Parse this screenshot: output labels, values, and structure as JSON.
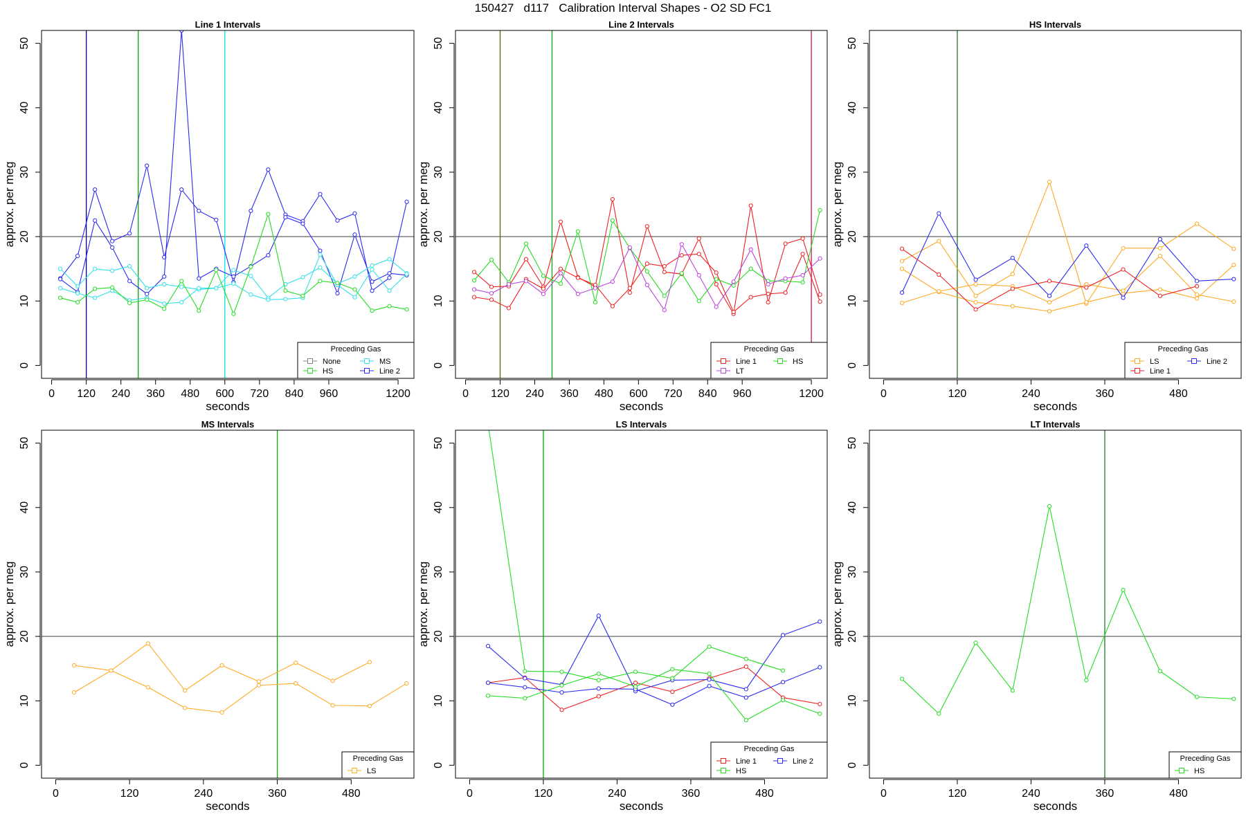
{
  "page": {
    "title": "150427   d117   Calibration Interval Shapes - O2 SD FC1"
  },
  "colors": {
    "None": "#808080",
    "HS": "#22dd22",
    "MS": "#33e0e8",
    "Line 2": "#2a2af0",
    "Line 1": "#ee2020",
    "LT": "#bb44dd",
    "LS": "#ffaa22",
    "green_vline": "#00aa00",
    "dark_green_vline": "#1c7a1c",
    "olive_vline": "#556b00",
    "navy_vline": "#00008b",
    "cyan_vline": "#00e5e5",
    "crimson_vline": "#cc1155",
    "ref_line": "#555555"
  },
  "chart_data": [
    {
      "type": "line",
      "title": "Line 1 Intervals",
      "xlabel": "seconds",
      "ylabel": "approx. per meg",
      "xlim": [
        -35,
        1255
      ],
      "ylim": [
        -2,
        52
      ],
      "xticks": [
        0,
        120,
        240,
        360,
        480,
        600,
        720,
        840,
        960,
        1200
      ],
      "yticks": [
        0,
        10,
        20,
        30,
        40,
        50
      ],
      "hline": 20,
      "vlines": [
        {
          "x": 120,
          "color": "navy_vline"
        },
        {
          "x": 300,
          "color": "green_vline"
        },
        {
          "x": 600,
          "color": "cyan_vline"
        }
      ],
      "legend": {
        "title": "Preceding Gas",
        "entries": [
          "None",
          "MS",
          "HS",
          "Line 2"
        ],
        "cols": 2
      },
      "series": [
        {
          "name": "Line 2",
          "x": [
            30,
            90,
            150,
            210,
            270,
            330,
            390,
            450,
            510,
            570,
            630,
            690,
            750,
            810,
            870,
            930,
            990,
            1050,
            1110,
            1170,
            1230
          ],
          "y": [
            13.5,
            17,
            27.3,
            19.3,
            20.5,
            31,
            16.8,
            27.3,
            24,
            22.6,
            12.9,
            24,
            30.4,
            23.4,
            22.4,
            26.6,
            22.5,
            23.6,
            11.6,
            13.6,
            25.4
          ]
        },
        {
          "name": "Line 2",
          "x": [
            30,
            90,
            150,
            210,
            270,
            330,
            390,
            450,
            510,
            570,
            630,
            690,
            750,
            810,
            870,
            930,
            990,
            1050,
            1110,
            1170,
            1230
          ],
          "y": [
            13.4,
            11.4,
            22.5,
            18.3,
            13.1,
            11.1,
            13.8,
            52,
            13.5,
            15,
            13.8,
            15.4,
            17.1,
            23,
            22,
            17.8,
            11.2,
            20.3,
            13,
            14.3,
            14
          ]
        },
        {
          "name": "MS",
          "x": [
            30,
            90,
            150,
            210,
            270,
            330,
            390,
            450,
            510,
            570,
            630,
            690,
            750,
            810,
            870,
            930,
            990,
            1050,
            1110,
            1170,
            1230
          ],
          "y": [
            15,
            12.3,
            15,
            14.7,
            15.4,
            12,
            12.6,
            12.2,
            11.8,
            12,
            14.8,
            13.9,
            10.5,
            12.6,
            13.7,
            15.2,
            12.7,
            13.8,
            15.5,
            16.5,
            14.3
          ]
        },
        {
          "name": "MS",
          "x": [
            30,
            90,
            150,
            210,
            270,
            330,
            390,
            450,
            510,
            570,
            630,
            690,
            750,
            810,
            870,
            930,
            990,
            1050,
            1110,
            1170,
            1230
          ],
          "y": [
            12,
            11.2,
            10.5,
            11.6,
            10.1,
            10.5,
            9.6,
            9.8,
            12,
            12,
            12.7,
            11,
            10.2,
            10.3,
            10.5,
            17.2,
            12.5,
            10.6,
            14.9,
            11.6,
            14.2
          ]
        },
        {
          "name": "HS",
          "x": [
            30,
            90,
            150,
            210,
            270,
            330,
            390,
            450,
            510,
            570,
            630,
            690,
            750,
            810,
            870,
            930,
            990,
            1050,
            1110,
            1170,
            1230
          ],
          "y": [
            10.5,
            9.8,
            11.9,
            12.1,
            9.7,
            10.2,
            8.8,
            13.1,
            8.5,
            14.8,
            8,
            15.3,
            23.5,
            11.6,
            10.8,
            13.1,
            12.8,
            11.8,
            8.5,
            9.2,
            8.7
          ]
        }
      ]
    },
    {
      "type": "line",
      "title": "Line 2 Intervals",
      "xlabel": "seconds",
      "ylabel": "approx. per meg",
      "xlim": [
        -35,
        1255
      ],
      "ylim": [
        -2,
        52
      ],
      "xticks": [
        0,
        120,
        240,
        360,
        480,
        600,
        720,
        840,
        960,
        1200
      ],
      "yticks": [
        0,
        10,
        20,
        30,
        40,
        50
      ],
      "hline": 20,
      "vlines": [
        {
          "x": 120,
          "color": "olive_vline"
        },
        {
          "x": 300,
          "color": "green_vline"
        },
        {
          "x": 1200,
          "color": "crimson_vline"
        }
      ],
      "legend": {
        "title": "Preceding Gas",
        "entries": [
          "Line 1",
          "HS",
          "LT"
        ],
        "cols": 2
      },
      "series": [
        {
          "name": "Line 1",
          "x": [
            30,
            90,
            150,
            210,
            270,
            330,
            390,
            450,
            510,
            570,
            630,
            690,
            750,
            810,
            870,
            930,
            990,
            1050,
            1110,
            1170,
            1230
          ],
          "y": [
            14.5,
            12.2,
            12.3,
            16.5,
            12.2,
            22.3,
            13.7,
            12.2,
            25.8,
            11.3,
            21.6,
            14.5,
            14.2,
            19.7,
            12.6,
            8,
            24.8,
            9.8,
            18.9,
            19.7,
            11
          ]
        },
        {
          "name": "Line 1",
          "x": [
            30,
            90,
            150,
            210,
            270,
            330,
            390,
            450,
            510,
            570,
            630,
            690,
            750,
            810,
            870,
            930,
            990,
            1050,
            1110,
            1170,
            1230
          ],
          "y": [
            10.6,
            10.2,
            8.9,
            13.4,
            11.9,
            15,
            13.6,
            12.5,
            9.2,
            12,
            15.8,
            15.4,
            17.1,
            17.3,
            14.4,
            8.3,
            10.6,
            11.1,
            11.3,
            17.3,
            9.9
          ]
        },
        {
          "name": "HS",
          "x": [
            30,
            90,
            150,
            210,
            270,
            330,
            390,
            450,
            510,
            570,
            630,
            690,
            750,
            810,
            870,
            930,
            990,
            1050,
            1110,
            1170,
            1230
          ],
          "y": [
            13.2,
            16.4,
            12.9,
            18.9,
            13.9,
            12.7,
            20.8,
            9.8,
            22.5,
            18.2,
            14.6,
            10.8,
            14.3,
            10,
            13.4,
            12.4,
            15,
            13.1,
            13.1,
            12.9,
            24.1
          ]
        },
        {
          "name": "LT",
          "x": [
            30,
            90,
            150,
            210,
            270,
            330,
            390,
            450,
            510,
            570,
            630,
            690,
            750,
            810,
            870,
            930,
            990,
            1050,
            1110,
            1170,
            1230
          ],
          "y": [
            11.8,
            11.2,
            12.6,
            13.1,
            11.1,
            14.3,
            11.1,
            12,
            13,
            18.3,
            12.5,
            8.6,
            18.8,
            14,
            9.1,
            13,
            18,
            12.6,
            13.5,
            14,
            16.6
          ]
        }
      ]
    },
    {
      "type": "line",
      "title": "HS Intervals",
      "xlabel": "seconds",
      "ylabel": "approx. per meg",
      "xlim": [
        -23,
        582
      ],
      "ylim": [
        -2,
        52
      ],
      "xticks": [
        0,
        120,
        240,
        360,
        480
      ],
      "yticks": [
        0,
        10,
        20,
        30,
        40,
        50
      ],
      "hline": 20,
      "vlines": [
        {
          "x": 120,
          "color": "dark_green_vline"
        }
      ],
      "legend": {
        "title": "Preceding Gas",
        "entries": [
          "LS",
          "Line 2",
          "Line 1"
        ],
        "cols": 2
      },
      "series": [
        {
          "name": "LS",
          "x": [
            30,
            90,
            150,
            210,
            270,
            330,
            390,
            450,
            510,
            570
          ],
          "y": [
            16.2,
            19.3,
            10.8,
            14.2,
            28.5,
            9.6,
            18.2,
            18.2,
            22,
            18.1
          ]
        },
        {
          "name": "LS",
          "x": [
            30,
            90,
            150,
            210,
            270,
            330,
            390,
            450,
            510,
            570
          ],
          "y": [
            15,
            11.4,
            9.8,
            9.2,
            8.4,
            9.8,
            11.2,
            11.8,
            10.4,
            15.6
          ]
        },
        {
          "name": "LS",
          "x": [
            30,
            90,
            150,
            210,
            270,
            330,
            390,
            450,
            510,
            570
          ],
          "y": [
            9.7,
            11.5,
            12.6,
            12.3,
            9.8,
            12.6,
            11.6,
            17,
            11,
            9.9
          ]
        },
        {
          "name": "Line 2",
          "x": [
            30,
            90,
            150,
            210,
            270,
            330,
            390,
            450,
            510,
            570
          ],
          "y": [
            11.3,
            23.6,
            13.3,
            16.7,
            10.8,
            18.6,
            10.5,
            19.6,
            13.1,
            13.4
          ]
        },
        {
          "name": "Line 1",
          "x": [
            30,
            90,
            150,
            210,
            270,
            330,
            390,
            450,
            510
          ],
          "y": [
            18.1,
            14.1,
            8.7,
            11.9,
            13.1,
            12.1,
            14.9,
            10.8,
            12.3
          ]
        }
      ]
    },
    {
      "type": "line",
      "title": "MS Intervals",
      "xlabel": "seconds",
      "ylabel": "approx. per meg",
      "xlim": [
        -23,
        582
      ],
      "ylim": [
        -2,
        52
      ],
      "xticks": [
        0,
        120,
        240,
        360,
        480
      ],
      "yticks": [
        0,
        10,
        20,
        30,
        40,
        50
      ],
      "hline": 20,
      "vlines": [
        {
          "x": 360,
          "color": "green_vline"
        }
      ],
      "legend": {
        "title": "Preceding Gas",
        "entries": [
          "LS"
        ],
        "cols": 1
      },
      "series": [
        {
          "name": "LS",
          "x": [
            30,
            90,
            150,
            210,
            270,
            330,
            390,
            450,
            510,
            570
          ],
          "y": [
            15.5,
            14.7,
            12.1,
            8.9,
            8.2,
            12.4,
            12.7,
            9.3,
            9.2,
            12.7
          ]
        },
        {
          "name": "LS",
          "x": [
            30,
            90,
            150,
            210,
            270,
            330,
            390,
            450,
            510
          ],
          "y": [
            11.3,
            14.7,
            18.9,
            11.6,
            15.5,
            13,
            15.9,
            13.1,
            16
          ]
        }
      ]
    },
    {
      "type": "line",
      "title": "LS Intervals",
      "xlabel": "seconds",
      "ylabel": "approx. per meg",
      "xlim": [
        -23,
        582
      ],
      "ylim": [
        -2,
        52
      ],
      "xticks": [
        0,
        120,
        240,
        360,
        480
      ],
      "yticks": [
        0,
        10,
        20,
        30,
        40,
        50
      ],
      "hline": 20,
      "vlines": [
        {
          "x": 120,
          "color": "green_vline"
        }
      ],
      "legend": {
        "title": "Preceding Gas",
        "entries": [
          "Line 1",
          "Line 2",
          "HS"
        ],
        "cols": 2
      },
      "series": [
        {
          "name": "Line 1",
          "x": [
            30,
            90,
            150,
            210,
            270,
            330,
            390,
            450,
            510,
            570
          ],
          "y": [
            12.8,
            13.6,
            8.6,
            10.7,
            12.8,
            11.4,
            13.5,
            15.3,
            10.5,
            9.5
          ]
        },
        {
          "name": "Line 2",
          "x": [
            30,
            90,
            150,
            210,
            270,
            330,
            390,
            450,
            510,
            570
          ],
          "y": [
            18.5,
            13.5,
            12.5,
            23.2,
            11.5,
            13.2,
            13.3,
            11.8,
            20.2,
            22.3
          ]
        },
        {
          "name": "Line 2",
          "x": [
            30,
            90,
            150,
            210,
            270,
            330,
            390,
            450,
            510,
            570
          ],
          "y": [
            12.8,
            12.1,
            11.3,
            11.9,
            11.8,
            9.4,
            12.3,
            10.5,
            12.9,
            15.2
          ]
        },
        {
          "name": "HS",
          "x": [
            30,
            90,
            150,
            210,
            270,
            330,
            390,
            450,
            510
          ],
          "y": [
            53,
            14.6,
            14.5,
            13.2,
            14.5,
            13.5,
            18.4,
            16.5,
            14.7
          ]
        },
        {
          "name": "HS",
          "x": [
            30,
            90,
            150,
            210,
            270,
            330,
            390,
            450,
            510,
            570
          ],
          "y": [
            10.8,
            10.4,
            12.4,
            14.2,
            12.2,
            14.9,
            14.2,
            7,
            10.1,
            8
          ]
        }
      ]
    },
    {
      "type": "line",
      "title": "LT Intervals",
      "xlabel": "seconds",
      "ylabel": "approx. per meg",
      "xlim": [
        -23,
        582
      ],
      "ylim": [
        -2,
        52
      ],
      "xticks": [
        0,
        120,
        240,
        360,
        480
      ],
      "yticks": [
        0,
        10,
        20,
        30,
        40,
        50
      ],
      "hline": 20,
      "vlines": [
        {
          "x": 360,
          "color": "dark_green_vline"
        }
      ],
      "legend": {
        "title": "Preceding Gas",
        "entries": [
          "HS"
        ],
        "cols": 1
      },
      "series": [
        {
          "name": "HS",
          "x": [
            30,
            90,
            150,
            210,
            270,
            330,
            390,
            450,
            510,
            570
          ],
          "y": [
            13.4,
            8,
            19,
            11.6,
            40.2,
            13.2,
            27.2,
            14.6,
            10.6,
            10.3
          ]
        }
      ]
    }
  ]
}
